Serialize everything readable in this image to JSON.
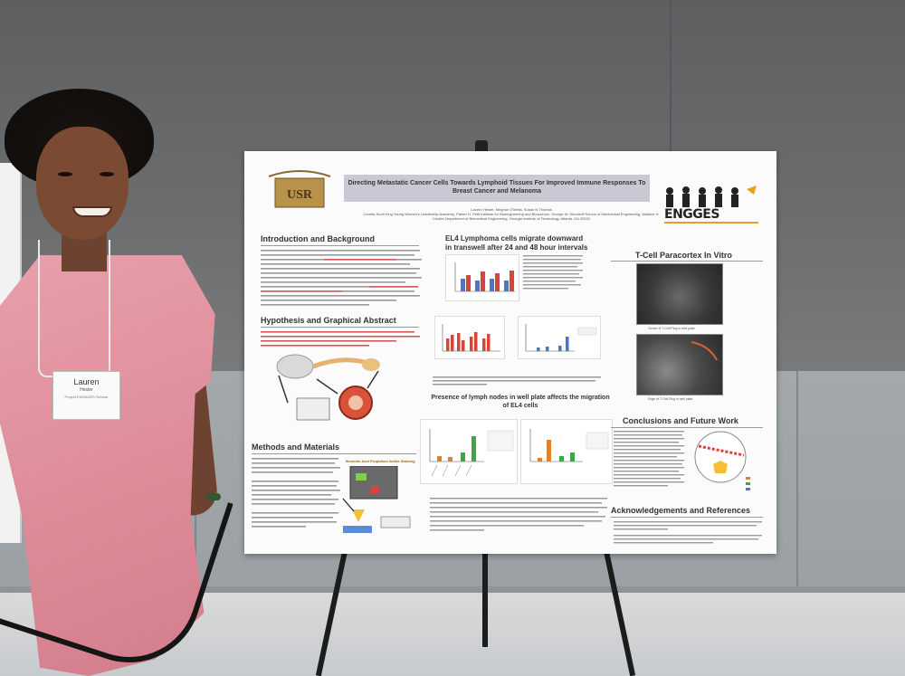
{
  "poster": {
    "title": "Directing Metastatic Cancer Cells Towards Lymphoid Tissues For Improved Immune Responses To Breast Cancer and Melanoma",
    "authors": "Lauren Hester, Meghan O'Melia, Susan N Thomas",
    "affiliation": "Coretta Scott King Young Women's Leadership Academy, Parker H. Petit Institute for Bioengineering and Bioscience, George W. Woodruff School of Mechanical Engineering, Wallace H. Coulter Department of Biomedical Engineering, Georgia Institute of Technology, Atlanta, GA 30332",
    "logo_right_text": "ENGGES",
    "sections": {
      "intro": "Introduction and Background",
      "hypothesis": "Hypothesis and Graphical Abstract",
      "methods": "Methods and Materials",
      "el4": "EL4 Lymphoma cells migrate downward in transwell after 24 and 48 hour intervals",
      "lymph": "Presence of lymph nodes in well plate affects the migration of EL4 cells",
      "tcell": "T-Cell Paracortex In Vitro",
      "conclusions": "Conclusions and Future Work",
      "ack": "Acknowledgements and References"
    },
    "staining_label": "Bromide Acid Propidium Iodide Staining",
    "tcell_caption_1": "Center of T-Cell Plug in well plate",
    "tcell_caption_2": "Edge of T-Cell Plug in well plate"
  },
  "badge": {
    "name": "Lauren",
    "surname": "Hester",
    "program": "Project ENGAGES Scholar"
  },
  "colors": {
    "bar_blue": "#4a76c9",
    "bar_red": "#d8433a",
    "bar_orange": "#e0812b",
    "bar_green": "#3fa643"
  }
}
